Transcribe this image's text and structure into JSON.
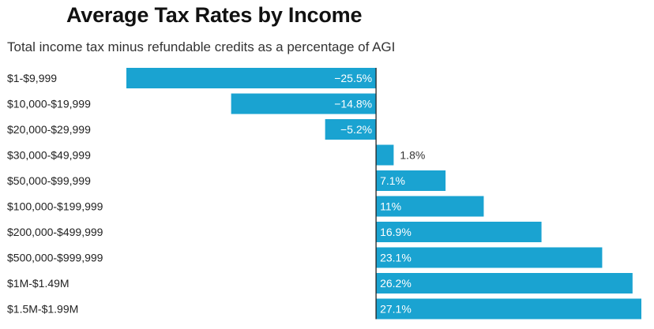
{
  "chart_data": {
    "type": "bar",
    "orientation": "horizontal",
    "title": "Average Tax Rates by Income",
    "subtitle": "Total income tax minus refundable credits as a percentage of AGI",
    "xlabel": "",
    "ylabel": "",
    "categories": [
      "$1-$9,999",
      "$10,000-$19,999",
      "$20,000-$29,999",
      "$30,000-$49,999",
      "$50,000-$99,999",
      "$100,000-$199,999",
      "$200,000-$499,999",
      "$500,000-$999,999",
      "$1M-$1.49M",
      "$1.5M-$1.99M"
    ],
    "values": [
      -25.5,
      -14.8,
      -5.2,
      1.8,
      7.1,
      11,
      16.9,
      23.1,
      26.2,
      27.1
    ],
    "value_labels": [
      "−25.5%",
      "−14.8%",
      "−5.2%",
      "1.8%",
      "7.1%",
      "11%",
      "16.9%",
      "23.1%",
      "26.2%",
      "27.1%"
    ],
    "xlim": [
      -25.5,
      27.1
    ],
    "grid": false,
    "legend": "none",
    "colors": {
      "bar": "#1aa3d1",
      "label_inside": "#ffffff",
      "label_outside": "#333333",
      "zero_line": "#222222"
    }
  }
}
